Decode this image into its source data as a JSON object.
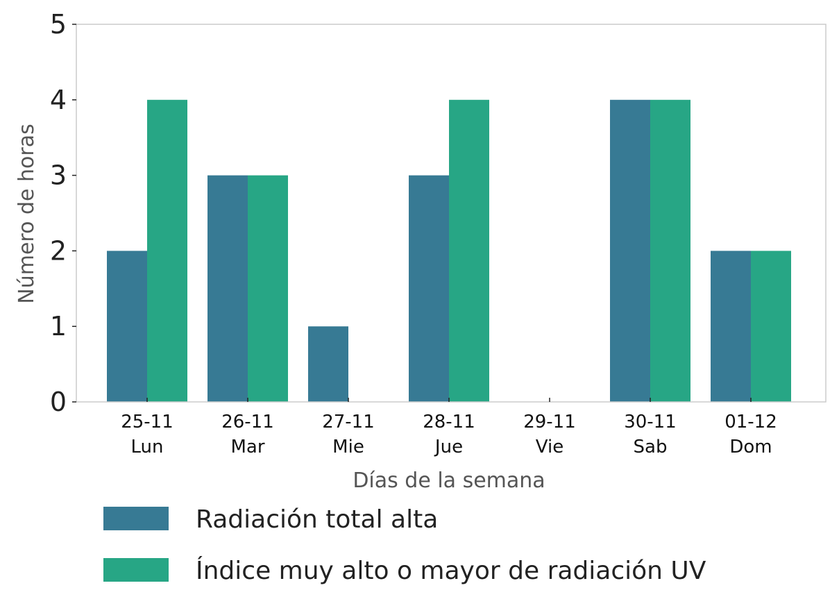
{
  "chart_data": {
    "type": "bar",
    "title": "",
    "xlabel": "Días de la semana",
    "ylabel": "Número de horas",
    "ylim": [
      0,
      5
    ],
    "yticks": [
      0,
      1,
      2,
      3,
      4,
      5
    ],
    "grid": false,
    "legend_placement": "bottom",
    "categories": [
      {
        "date": "25-11",
        "day": "Lun"
      },
      {
        "date": "26-11",
        "day": "Mar"
      },
      {
        "date": "27-11",
        "day": "Mie"
      },
      {
        "date": "28-11",
        "day": "Jue"
      },
      {
        "date": "29-11",
        "day": "Vie"
      },
      {
        "date": "30-11",
        "day": "Sab"
      },
      {
        "date": "01-12",
        "day": "Dom"
      }
    ],
    "series": [
      {
        "name": "Radiación total alta",
        "color": "#377a94",
        "values": [
          2,
          3,
          1,
          3,
          0,
          4,
          2
        ]
      },
      {
        "name": "Índice muy alto o mayor de radiación UV",
        "color": "#27a685",
        "values": [
          4,
          3,
          0,
          4,
          0,
          4,
          2
        ]
      }
    ]
  }
}
